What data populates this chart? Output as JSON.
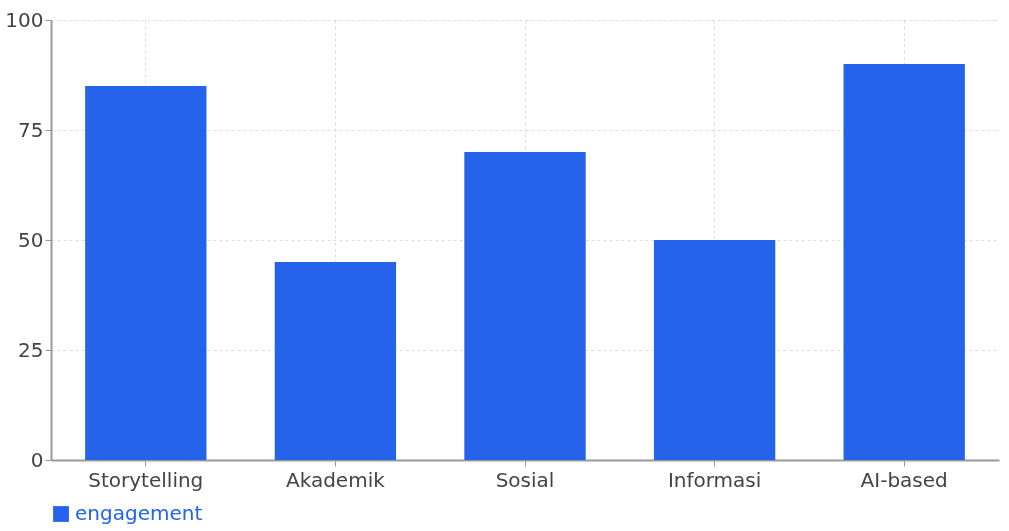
{
  "chart_data": {
    "type": "bar",
    "categories": [
      "Storytelling",
      "Akademik",
      "Sosial",
      "Informasi",
      "AI-based"
    ],
    "series": [
      {
        "name": "engagement",
        "color": "#2563eb",
        "values": [
          85,
          45,
          70,
          50,
          90
        ]
      }
    ],
    "ylim": [
      0,
      100
    ],
    "yticks": [
      0,
      25,
      50,
      75,
      100
    ],
    "grid": true,
    "legend": "bottom"
  }
}
